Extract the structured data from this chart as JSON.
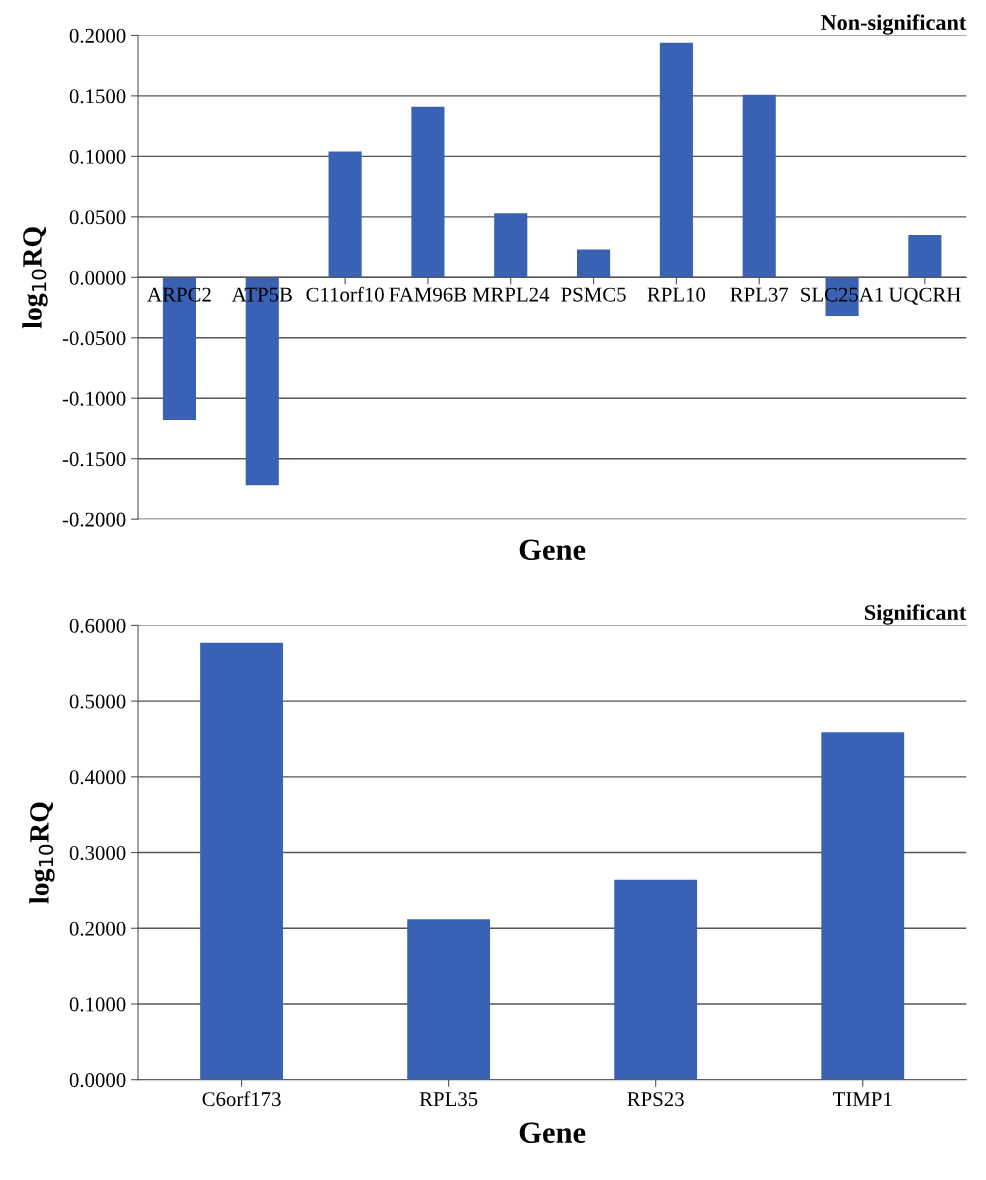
{
  "chart_data": [
    {
      "type": "bar",
      "title": "Non-significant",
      "xlabel": "Gene",
      "ylabel": "log$_{10}$RQ",
      "categories": [
        "ARPC2",
        "ATP5B",
        "C11orf10",
        "FAM96B",
        "MRPL24",
        "PSMC5",
        "RPL10",
        "RPL37",
        "SLC25A1",
        "UQCRH"
      ],
      "values": [
        -0.118,
        -0.172,
        0.104,
        0.141,
        0.053,
        0.023,
        0.194,
        0.151,
        -0.032,
        0.035
      ],
      "color": "#3a62b4",
      "ylim": [
        -0.2,
        0.2
      ],
      "yticks": [
        {
          "value": -0.2,
          "label": "-0.2000"
        },
        {
          "value": -0.15,
          "label": "-0.1500"
        },
        {
          "value": -0.1,
          "label": "-0.1000"
        },
        {
          "value": -0.05,
          "label": "-0.0500"
        },
        {
          "value": 0,
          "label": "0.0000"
        },
        {
          "value": 0.05,
          "label": "0.0500"
        },
        {
          "value": 0.1,
          "label": "0.1000"
        },
        {
          "value": 0.15,
          "label": "0.1500"
        },
        {
          "value": 0.2,
          "label": "0.2000"
        }
      ],
      "grid": "y",
      "legend": false
    },
    {
      "type": "bar",
      "title": "Significant",
      "xlabel": "Gene",
      "ylabel": "log$_{10}$RQ",
      "categories": [
        "C6orf173",
        "RPL35",
        "RPS23",
        "TIMP1"
      ],
      "values": [
        0.577,
        0.212,
        0.264,
        0.459
      ],
      "color": "#3a62b4",
      "ylim": [
        0,
        0.6
      ],
      "yticks": [
        {
          "value": 0,
          "label": "0.0000"
        },
        {
          "value": 0.1,
          "label": "0.1000"
        },
        {
          "value": 0.2,
          "label": "0.2000"
        },
        {
          "value": 0.3,
          "label": "0.3000"
        },
        {
          "value": 0.4,
          "label": "0.4000"
        },
        {
          "value": 0.5,
          "label": "0.5000"
        },
        {
          "value": 0.6,
          "label": "0.6000"
        }
      ],
      "grid": "y",
      "legend": false
    }
  ]
}
